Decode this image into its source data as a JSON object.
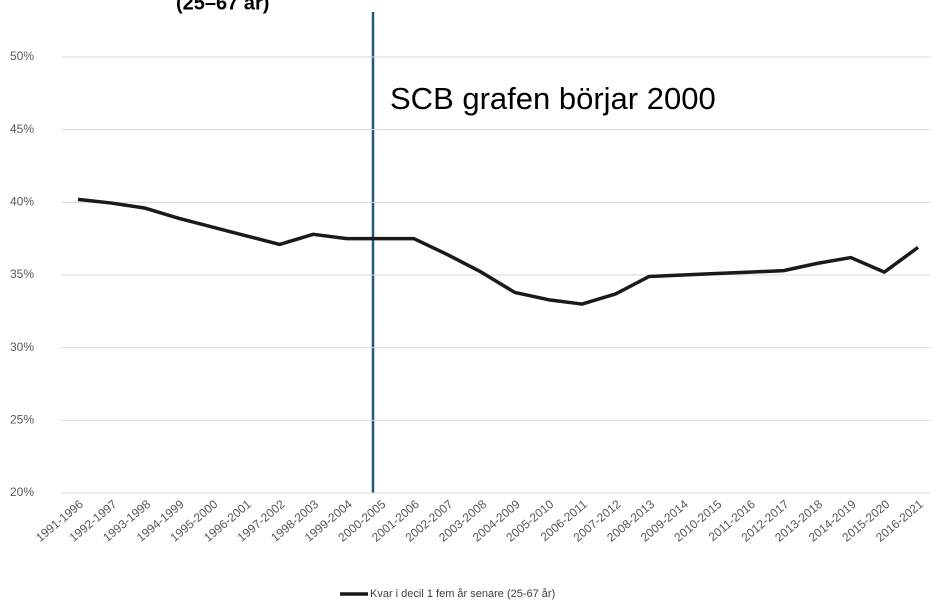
{
  "chart_data": {
    "type": "line",
    "title": "(25–67 år)",
    "annotation": "SCB grafen börjar 2000",
    "categories": [
      "1991-1996",
      "1992-1997",
      "1993-1998",
      "1994-1999",
      "1995-2000",
      "1996-2001",
      "1997-2002",
      "1998-2003",
      "1999-2004",
      "2000-2005",
      "2001-2006",
      "2002-2007",
      "2003-2008",
      "2004-2009",
      "2005-2010",
      "2006-2011",
      "2007-2012",
      "2008-2013",
      "2009-2014",
      "2010-2015",
      "2011-2016",
      "2012-2017",
      "2013-2018",
      "2014-2019",
      "2015-2020",
      "2016-2021"
    ],
    "series": [
      {
        "name": "Kvar i decil 1 fem år senare (25-67 år)",
        "color": "#1a1a1a",
        "values": [
          40.2,
          39.95,
          39.6,
          38.9,
          38.3,
          37.7,
          37.1,
          37.8,
          37.5,
          37.5,
          37.5,
          36.4,
          35.2,
          33.8,
          33.3,
          33.0,
          33.7,
          34.9,
          35.0,
          35.1,
          35.2,
          35.3,
          35.8,
          36.2,
          35.2,
          36.9
        ]
      }
    ],
    "ylim": [
      20,
      50
    ],
    "yticks": [
      {
        "value": 20,
        "label": "20%"
      },
      {
        "value": 25,
        "label": "25%"
      },
      {
        "value": 30,
        "label": "30%"
      },
      {
        "value": 35,
        "label": "35%"
      },
      {
        "value": 40,
        "label": "40%"
      },
      {
        "value": 45,
        "label": "45%"
      },
      {
        "value": 50,
        "label": "50%"
      }
    ],
    "grid": true,
    "legend": "bottom"
  }
}
